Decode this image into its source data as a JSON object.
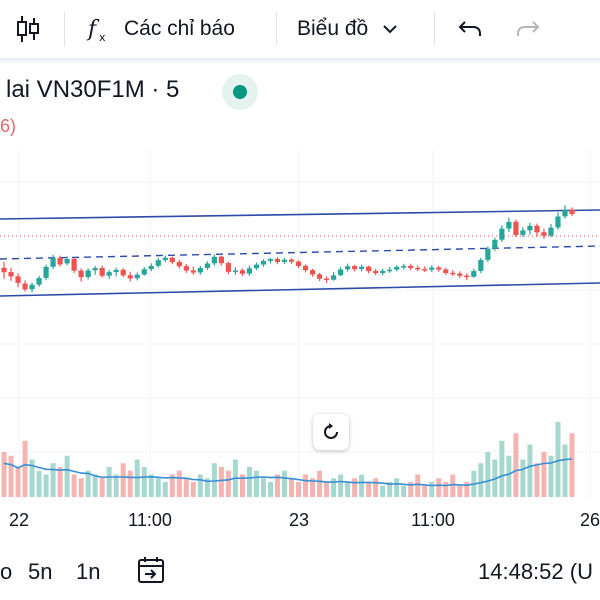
{
  "toolbar": {
    "indicators_label": "Các chỉ báo",
    "chart_type_label": "Biểu đồ"
  },
  "legend": {
    "title": "lai VN30F1M · 5",
    "sub": "6)",
    "status_color": "#089981"
  },
  "time_axis": {
    "ticks": [
      "22",
      "11:00",
      "23",
      "11:00",
      "26"
    ]
  },
  "bottom_bar": {
    "range_partial": "o",
    "range_5d": "5n",
    "range_1d": "1n",
    "clock": "14:48:52 (U"
  },
  "colors": {
    "up": "#26a69a",
    "down": "#ef5350",
    "channel": "#2c4aa8",
    "ma": "#3a8fd4"
  },
  "chart_data": {
    "type": "candlestick",
    "candles": [
      [
        0.55,
        0.45,
        0.3,
        0.68
      ],
      [
        0.45,
        0.35,
        0.25,
        0.55
      ],
      [
        0.35,
        0.2,
        0.1,
        0.42
      ],
      [
        0.18,
        0.05,
        0.0,
        0.25
      ],
      [
        0.05,
        0.15,
        -0.02,
        0.2
      ],
      [
        0.15,
        0.3,
        0.1,
        0.35
      ],
      [
        0.3,
        0.55,
        0.25,
        0.6
      ],
      [
        0.55,
        0.75,
        0.5,
        0.82
      ],
      [
        0.75,
        0.6,
        0.55,
        0.8
      ],
      [
        0.62,
        0.72,
        0.58,
        0.78
      ],
      [
        0.72,
        0.45,
        0.4,
        0.75
      ],
      [
        0.45,
        0.3,
        0.2,
        0.5
      ],
      [
        0.3,
        0.45,
        0.25,
        0.5
      ],
      [
        0.45,
        0.5,
        0.35,
        0.55
      ],
      [
        0.5,
        0.32,
        0.28,
        0.55
      ],
      [
        0.32,
        0.4,
        0.25,
        0.45
      ],
      [
        0.4,
        0.45,
        0.3,
        0.5
      ],
      [
        0.45,
        0.32,
        0.28,
        0.48
      ],
      [
        0.32,
        0.25,
        0.18,
        0.4
      ],
      [
        0.25,
        0.33,
        0.2,
        0.38
      ],
      [
        0.33,
        0.45,
        0.3,
        0.5
      ],
      [
        0.45,
        0.52,
        0.4,
        0.58
      ],
      [
        0.52,
        0.65,
        0.48,
        0.7
      ],
      [
        0.65,
        0.7,
        0.6,
        0.75
      ],
      [
        0.7,
        0.6,
        0.55,
        0.72
      ],
      [
        0.6,
        0.5,
        0.45,
        0.65
      ],
      [
        0.5,
        0.4,
        0.35,
        0.55
      ],
      [
        0.4,
        0.35,
        0.3,
        0.48
      ],
      [
        0.35,
        0.45,
        0.3,
        0.5
      ],
      [
        0.45,
        0.55,
        0.4,
        0.6
      ],
      [
        0.55,
        0.7,
        0.5,
        0.75
      ],
      [
        0.7,
        0.55,
        0.5,
        0.72
      ],
      [
        0.55,
        0.35,
        0.3,
        0.58
      ],
      [
        0.35,
        0.38,
        0.28,
        0.45
      ],
      [
        0.38,
        0.3,
        0.25,
        0.42
      ],
      [
        0.3,
        0.42,
        0.25,
        0.48
      ],
      [
        0.42,
        0.5,
        0.38,
        0.55
      ],
      [
        0.5,
        0.58,
        0.45,
        0.62
      ],
      [
        0.58,
        0.62,
        0.52,
        0.65
      ],
      [
        0.62,
        0.55,
        0.5,
        0.66
      ],
      [
        0.55,
        0.6,
        0.5,
        0.64
      ],
      [
        0.6,
        0.55,
        0.5,
        0.63
      ],
      [
        0.55,
        0.45,
        0.4,
        0.58
      ],
      [
        0.45,
        0.35,
        0.3,
        0.48
      ],
      [
        0.35,
        0.25,
        0.2,
        0.38
      ],
      [
        0.25,
        0.15,
        0.1,
        0.28
      ],
      [
        0.15,
        0.12,
        0.05,
        0.2
      ],
      [
        0.12,
        0.22,
        0.1,
        0.3
      ],
      [
        0.22,
        0.35,
        0.2,
        0.4
      ],
      [
        0.35,
        0.42,
        0.3,
        0.48
      ],
      [
        0.42,
        0.35,
        0.3,
        0.45
      ],
      [
        0.35,
        0.4,
        0.3,
        0.45
      ],
      [
        0.4,
        0.3,
        0.25,
        0.42
      ],
      [
        0.3,
        0.25,
        0.2,
        0.35
      ],
      [
        0.25,
        0.3,
        0.2,
        0.35
      ],
      [
        0.3,
        0.32,
        0.25,
        0.38
      ],
      [
        0.32,
        0.38,
        0.28,
        0.42
      ],
      [
        0.38,
        0.4,
        0.32,
        0.45
      ],
      [
        0.4,
        0.35,
        0.3,
        0.45
      ],
      [
        0.35,
        0.32,
        0.28,
        0.4
      ],
      [
        0.32,
        0.3,
        0.25,
        0.38
      ],
      [
        0.3,
        0.35,
        0.25,
        0.4
      ],
      [
        0.35,
        0.3,
        0.25,
        0.38
      ],
      [
        0.3,
        0.22,
        0.18,
        0.34
      ],
      [
        0.22,
        0.2,
        0.15,
        0.28
      ],
      [
        0.2,
        0.15,
        0.1,
        0.25
      ],
      [
        0.15,
        0.12,
        0.05,
        0.2
      ],
      [
        0.12,
        0.25,
        0.1,
        0.3
      ],
      [
        0.25,
        0.5,
        0.2,
        0.55
      ],
      [
        0.5,
        0.75,
        0.45,
        0.8
      ],
      [
        0.75,
        0.95,
        0.7,
        1.0
      ],
      [
        0.95,
        1.2,
        0.9,
        1.28
      ],
      [
        1.2,
        1.35,
        1.12,
        1.45
      ],
      [
        1.35,
        1.05,
        1.0,
        1.4
      ],
      [
        1.05,
        1.15,
        1.0,
        1.22
      ],
      [
        1.15,
        1.25,
        1.05,
        1.32
      ],
      [
        1.25,
        1.1,
        1.0,
        1.3
      ],
      [
        1.1,
        1.02,
        0.95,
        1.18
      ],
      [
        1.02,
        1.2,
        0.98,
        1.28
      ],
      [
        1.2,
        1.45,
        1.15,
        1.55
      ],
      [
        1.45,
        1.6,
        1.4,
        1.7
      ],
      [
        1.6,
        1.5,
        1.45,
        1.65
      ]
    ],
    "volumes": [
      0.6,
      0.55,
      0.4,
      0.75,
      0.5,
      0.35,
      0.3,
      0.45,
      0.4,
      0.55,
      0.3,
      0.25,
      0.35,
      0.3,
      0.25,
      0.4,
      0.3,
      0.45,
      0.35,
      0.5,
      0.4,
      0.3,
      0.25,
      0.2,
      0.3,
      0.35,
      0.25,
      0.2,
      0.3,
      0.25,
      0.45,
      0.4,
      0.35,
      0.5,
      0.3,
      0.4,
      0.35,
      0.25,
      0.2,
      0.3,
      0.35,
      0.25,
      0.2,
      0.3,
      0.25,
      0.35,
      0.2,
      0.25,
      0.3,
      0.2,
      0.25,
      0.3,
      0.2,
      0.25,
      0.15,
      0.2,
      0.25,
      0.15,
      0.2,
      0.3,
      0.15,
      0.2,
      0.25,
      0.2,
      0.3,
      0.15,
      0.2,
      0.35,
      0.45,
      0.6,
      0.5,
      0.75,
      0.55,
      0.85,
      0.5,
      0.7,
      0.45,
      0.6,
      0.55,
      1.0,
      0.7,
      0.85
    ]
  }
}
